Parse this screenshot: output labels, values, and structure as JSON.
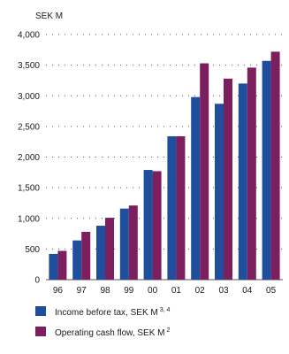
{
  "chart_data": {
    "type": "bar",
    "unit_label": "SEK M",
    "categories": [
      "96",
      "97",
      "98",
      "99",
      "00",
      "01",
      "02",
      "03",
      "04",
      "05"
    ],
    "series": [
      {
        "name": "Income before tax, SEK M",
        "name_sup": "3, 4",
        "color": "#1f4e9c",
        "values": [
          420,
          640,
          880,
          1160,
          1790,
          2340,
          2980,
          2870,
          3200,
          3570
        ]
      },
      {
        "name": "Operating cash flow, SEK M",
        "name_sup": "2",
        "color": "#7b1f5e",
        "values": [
          470,
          780,
          1010,
          1210,
          1770,
          2340,
          3530,
          3280,
          3460,
          3720
        ]
      }
    ],
    "y_ticks": [
      "4,000",
      "3,500",
      "3,000",
      "2,500",
      "2,000",
      "1,500",
      "1,000",
      "500",
      "0"
    ],
    "ylim": [
      0,
      4000
    ],
    "grid": "dotted horizontal",
    "legend_position": "bottom"
  }
}
